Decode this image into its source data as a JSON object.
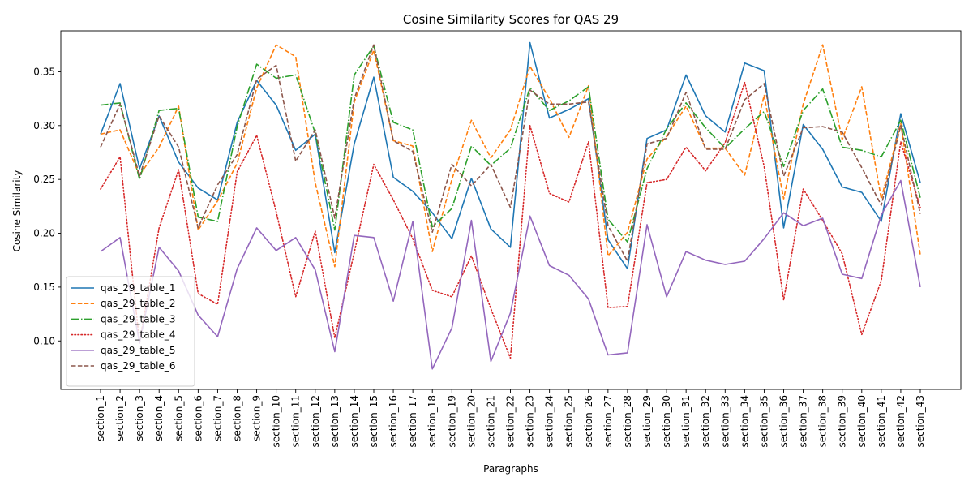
{
  "chart_data": {
    "type": "line",
    "title": "Cosine Similarity Scores for QAS 29",
    "xlabel": "Paragraphs",
    "ylabel": "Cosine Similarity",
    "ylim": [
      0.055,
      0.388
    ],
    "yticks": [
      0.1,
      0.15,
      0.2,
      0.25,
      0.3,
      0.35
    ],
    "ytick_labels": [
      "0.10",
      "0.15",
      "0.20",
      "0.25",
      "0.30",
      "0.35"
    ],
    "grid": false,
    "legend_position": "lower-left",
    "categories": [
      "section_1",
      "section_2",
      "section_3",
      "section_4",
      "section_5",
      "section_6",
      "section_7",
      "section_8",
      "section_9",
      "section_10",
      "section_11",
      "section_12",
      "section_13",
      "section_14",
      "section_15",
      "section_16",
      "section_17",
      "section_18",
      "section_19",
      "section_20",
      "section_21",
      "section_22",
      "section_23",
      "section_24",
      "section_25",
      "section_26",
      "section_27",
      "section_28",
      "section_29",
      "section_30",
      "section_31",
      "section_32",
      "section_33",
      "section_34",
      "section_35",
      "section_36",
      "section_37",
      "section_38",
      "section_39",
      "section_40",
      "section_41",
      "section_42",
      "section_43"
    ],
    "series": [
      {
        "name": "qas_29_table_1",
        "color": "#1f77b4",
        "dash": "solid",
        "values": [
          0.292,
          0.339,
          0.26,
          0.309,
          0.266,
          0.242,
          0.231,
          0.303,
          0.342,
          0.319,
          0.277,
          0.292,
          0.182,
          0.283,
          0.345,
          0.252,
          0.239,
          0.219,
          0.195,
          0.251,
          0.204,
          0.187,
          0.377,
          0.307,
          0.315,
          0.325,
          0.194,
          0.167,
          0.288,
          0.296,
          0.347,
          0.309,
          0.294,
          0.358,
          0.351,
          0.205,
          0.301,
          0.278,
          0.243,
          0.238,
          0.211,
          0.311,
          0.247
        ]
      },
      {
        "name": "qas_29_table_2",
        "color": "#ff7f0e",
        "dash": "dashed",
        "values": [
          0.292,
          0.296,
          0.254,
          0.28,
          0.318,
          0.203,
          0.23,
          0.265,
          0.335,
          0.375,
          0.364,
          0.247,
          0.169,
          0.322,
          0.37,
          0.286,
          0.281,
          0.183,
          0.25,
          0.305,
          0.27,
          0.296,
          0.355,
          0.325,
          0.289,
          0.337,
          0.179,
          0.201,
          0.269,
          0.29,
          0.318,
          0.279,
          0.279,
          0.254,
          0.328,
          0.232,
          0.32,
          0.375,
          0.287,
          0.336,
          0.232,
          0.302,
          0.18
        ]
      },
      {
        "name": "qas_29_table_3",
        "color": "#2ca02c",
        "dash": "dashdot",
        "values": [
          0.319,
          0.321,
          0.25,
          0.314,
          0.316,
          0.215,
          0.211,
          0.299,
          0.357,
          0.344,
          0.347,
          0.293,
          0.203,
          0.347,
          0.374,
          0.303,
          0.296,
          0.206,
          0.223,
          0.281,
          0.263,
          0.279,
          0.335,
          0.314,
          0.323,
          0.336,
          0.213,
          0.192,
          0.26,
          0.297,
          0.321,
          0.298,
          0.279,
          0.297,
          0.313,
          0.262,
          0.314,
          0.334,
          0.28,
          0.277,
          0.271,
          0.305,
          0.233
        ]
      },
      {
        "name": "qas_29_table_4",
        "color": "#d62728",
        "dash": "dotted",
        "values": [
          0.241,
          0.271,
          0.098,
          0.205,
          0.259,
          0.144,
          0.134,
          0.257,
          0.291,
          0.22,
          0.141,
          0.202,
          0.103,
          0.182,
          0.264,
          0.231,
          0.195,
          0.147,
          0.141,
          0.179,
          0.13,
          0.084,
          0.3,
          0.237,
          0.229,
          0.285,
          0.131,
          0.132,
          0.247,
          0.25,
          0.28,
          0.258,
          0.284,
          0.34,
          0.262,
          0.138,
          0.241,
          0.212,
          0.181,
          0.106,
          0.156,
          0.285,
          0.224
        ]
      },
      {
        "name": "qas_29_table_5",
        "color": "#9467bd",
        "dash": "solid",
        "values": [
          0.183,
          0.196,
          0.098,
          0.187,
          0.165,
          0.124,
          0.104,
          0.167,
          0.205,
          0.184,
          0.196,
          0.166,
          0.09,
          0.198,
          0.196,
          0.137,
          0.211,
          0.074,
          0.112,
          0.212,
          0.081,
          0.126,
          0.216,
          0.17,
          0.161,
          0.139,
          0.087,
          0.089,
          0.208,
          0.141,
          0.183,
          0.175,
          0.171,
          0.174,
          0.195,
          0.219,
          0.207,
          0.214,
          0.162,
          0.158,
          0.217,
          0.249,
          0.15
        ]
      },
      {
        "name": "qas_29_table_6",
        "color": "#8c564b",
        "dash": "dashed",
        "values": [
          0.28,
          0.32,
          0.253,
          0.309,
          0.28,
          0.205,
          0.245,
          0.273,
          0.343,
          0.356,
          0.267,
          0.296,
          0.214,
          0.325,
          0.375,
          0.286,
          0.276,
          0.201,
          0.264,
          0.244,
          0.264,
          0.224,
          0.333,
          0.32,
          0.32,
          0.322,
          0.207,
          0.174,
          0.283,
          0.288,
          0.331,
          0.278,
          0.278,
          0.324,
          0.339,
          0.253,
          0.298,
          0.299,
          0.294,
          0.261,
          0.226,
          0.3,
          0.218
        ]
      }
    ]
  }
}
